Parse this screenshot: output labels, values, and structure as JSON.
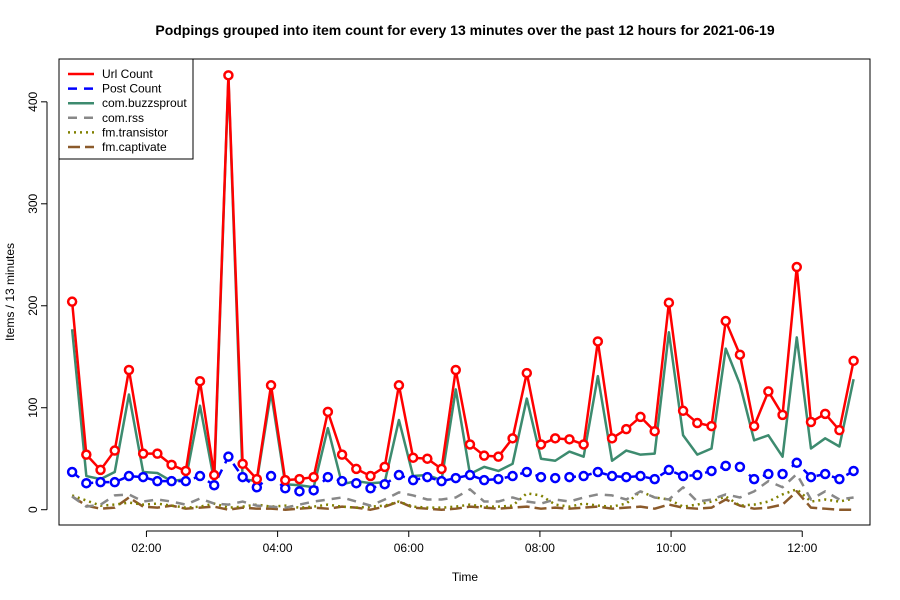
{
  "chart_data": {
    "type": "line",
    "title": "Podpings grouped into item count for every 13 minutes  over the past 12 hours for 2021-06-19",
    "xlabel": "Time",
    "ylabel": "Items / 13 minutes",
    "x_unit": "minutes since 00:00",
    "xlim": [
      40,
      782
    ],
    "ylim": [
      -15,
      442
    ],
    "x_ticks": [
      {
        "value": 120,
        "label": "02:00"
      },
      {
        "value": 240,
        "label": "04:00"
      },
      {
        "value": 360,
        "label": "06:00"
      },
      {
        "value": 480,
        "label": "08:00"
      },
      {
        "value": 600,
        "label": "10:00"
      },
      {
        "value": 720,
        "label": "12:00"
      }
    ],
    "y_ticks": [
      0,
      100,
      200,
      300,
      400
    ],
    "x": [
      52,
      65,
      78,
      91,
      104,
      117,
      130,
      143,
      156,
      169,
      182,
      195,
      208,
      221,
      234,
      247,
      260,
      273,
      286,
      299,
      312,
      325,
      338,
      351,
      364,
      377,
      390,
      403,
      416,
      429,
      442,
      455,
      468,
      481,
      494,
      507,
      520,
      533,
      546,
      559,
      572,
      585,
      598,
      611,
      624,
      637,
      650,
      663,
      676,
      689,
      702,
      715,
      728,
      741,
      754,
      767
    ],
    "legend_position": "top-left",
    "series": [
      {
        "name": "Url Count",
        "color": "#ff0000",
        "style": "solid-markers",
        "values": [
          204,
          54,
          39,
          58,
          137,
          55,
          55,
          44,
          38,
          126,
          34,
          426,
          45,
          30,
          122,
          29,
          30,
          32,
          96,
          54,
          40,
          33,
          42,
          122,
          51,
          50,
          40,
          137,
          64,
          53,
          52,
          70,
          134,
          64,
          70,
          69,
          64,
          165,
          70,
          79,
          91,
          77,
          203,
          97,
          85,
          82,
          185,
          152,
          82,
          116,
          93,
          238,
          86,
          94,
          78,
          146
        ]
      },
      {
        "name": "Post Count",
        "color": "#0000ff",
        "style": "dashed-markers",
        "values": [
          37,
          26,
          27,
          27,
          33,
          32,
          28,
          28,
          28,
          33,
          24,
          52,
          32,
          22,
          33,
          21,
          18,
          19,
          32,
          28,
          26,
          21,
          25,
          34,
          29,
          32,
          28,
          31,
          34,
          29,
          30,
          33,
          37,
          32,
          31,
          32,
          33,
          37,
          33,
          32,
          33,
          30,
          39,
          33,
          34,
          38,
          43,
          42,
          30,
          35,
          35,
          46,
          32,
          35,
          30,
          38
        ]
      },
      {
        "name": "com.buzzsprout",
        "color": "#3d8b6f",
        "style": "solid",
        "values": [
          177,
          33,
          30,
          37,
          113,
          37,
          36,
          28,
          30,
          102,
          28,
          424,
          30,
          28,
          115,
          25,
          24,
          22,
          80,
          25,
          28,
          26,
          27,
          88,
          33,
          34,
          29,
          118,
          35,
          42,
          38,
          45,
          109,
          50,
          48,
          57,
          52,
          131,
          48,
          58,
          54,
          55,
          174,
          73,
          54,
          60,
          158,
          123,
          68,
          73,
          52,
          169,
          60,
          70,
          62,
          128
        ]
      },
      {
        "name": "com.rss",
        "color": "#888888",
        "style": "dashed",
        "values": [
          13,
          3,
          5,
          14,
          15,
          8,
          10,
          8,
          5,
          11,
          6,
          5,
          8,
          4,
          3,
          2,
          5,
          8,
          10,
          12,
          8,
          4,
          10,
          17,
          14,
          10,
          10,
          12,
          20,
          8,
          8,
          12,
          8,
          6,
          10,
          8,
          12,
          15,
          14,
          10,
          18,
          12,
          10,
          22,
          8,
          10,
          15,
          12,
          18,
          28,
          22,
          35,
          10,
          18,
          10,
          12
        ]
      },
      {
        "name": "fm.transistor",
        "color": "#808000",
        "style": "dotted",
        "values": [
          14,
          9,
          4,
          5,
          7,
          5,
          6,
          4,
          2,
          3,
          6,
          2,
          3,
          5,
          3,
          4,
          2,
          3,
          5,
          3,
          2,
          3,
          4,
          8,
          3,
          2,
          2,
          3,
          5,
          3,
          3,
          4,
          16,
          14,
          5,
          3,
          6,
          4,
          3,
          6,
          18,
          12,
          10,
          3,
          5,
          8,
          13,
          4,
          5,
          8,
          15,
          20,
          8,
          10,
          8,
          11
        ]
      },
      {
        "name": "fm.captivate",
        "color": "#8b5a2b",
        "style": "longdash",
        "values": [
          13,
          4,
          1,
          2,
          12,
          3,
          2,
          4,
          1,
          2,
          3,
          0,
          2,
          1,
          1,
          0,
          1,
          2,
          1,
          3,
          2,
          0,
          3,
          8,
          2,
          1,
          0,
          1,
          3,
          2,
          1,
          2,
          3,
          1,
          2,
          1,
          2,
          3,
          1,
          2,
          3,
          1,
          5,
          2,
          1,
          2,
          10,
          4,
          1,
          2,
          5,
          18,
          2,
          1,
          0,
          0
        ]
      }
    ]
  }
}
